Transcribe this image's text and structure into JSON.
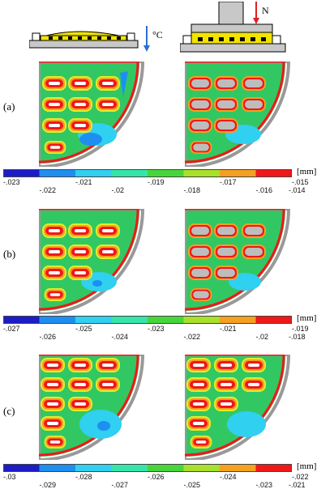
{
  "header": {
    "temp_label": "°C",
    "load_label": "N"
  },
  "panels": [
    {
      "label": "(a)",
      "unit": "[mm]",
      "top_ticks": [
        "-.023",
        "-.021",
        "-.019",
        "-.017",
        "-.015"
      ],
      "bottom_ticks": [
        "-.022",
        "-.02",
        "-.018",
        "-.016",
        "-.014"
      ]
    },
    {
      "label": "(b)",
      "unit": "[mm]",
      "top_ticks": [
        "-.027",
        "-.025",
        "-.023",
        "-.021",
        "-.019"
      ],
      "bottom_ticks": [
        "-.026",
        "-.024",
        "-.022",
        "-.02",
        "-.018"
      ]
    },
    {
      "label": "(c)",
      "unit": "[mm]",
      "top_ticks": [
        "-.03",
        "-.028",
        "-.026",
        "-.024",
        "-.022"
      ],
      "bottom_ticks": [
        "-.029",
        "-.027",
        "-.025",
        "-.023",
        "-.021"
      ]
    }
  ],
  "colorbar_colors": [
    "#1c1cc8",
    "#1e8ff0",
    "#2fd0f0",
    "#34e6a8",
    "#47d63a",
    "#a8e02a",
    "#f4a020",
    "#f01818"
  ]
}
